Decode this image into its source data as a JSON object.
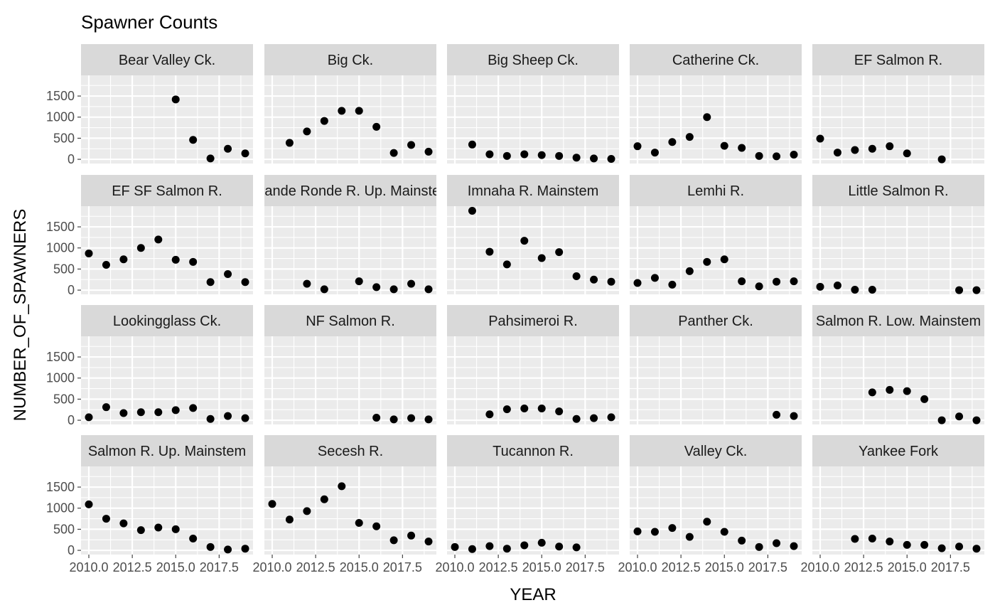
{
  "chart_data": {
    "type": "scatter",
    "title": "Spawner Counts",
    "xlabel": "YEAR",
    "ylabel": "NUMBER_OF_SPAWNERS",
    "xlim": [
      2009.55,
      2019.45
    ],
    "ylim": [
      -100,
      1990
    ],
    "x_ticks": [
      2010.0,
      2012.5,
      2015.0,
      2017.5
    ],
    "x_tick_labels": [
      "2010.0",
      "2012.5",
      "2015.0",
      "2017.5"
    ],
    "y_ticks": [
      0,
      500,
      1000,
      1500
    ],
    "y_tick_labels": [
      "0",
      "500",
      "1000",
      "1500"
    ],
    "grid": true,
    "facet_cols": 5,
    "panels": [
      {
        "name": "Bear Valley Ck.",
        "points": [
          [
            2015,
            1420
          ],
          [
            2016,
            460
          ],
          [
            2017,
            20
          ],
          [
            2018,
            250
          ],
          [
            2019,
            140
          ]
        ]
      },
      {
        "name": "Big Ck.",
        "points": [
          [
            2011,
            390
          ],
          [
            2012,
            660
          ],
          [
            2013,
            910
          ],
          [
            2014,
            1150
          ],
          [
            2015,
            1150
          ],
          [
            2016,
            770
          ],
          [
            2017,
            150
          ],
          [
            2018,
            340
          ],
          [
            2019,
            180
          ]
        ]
      },
      {
        "name": "Big Sheep Ck.",
        "points": [
          [
            2011,
            350
          ],
          [
            2012,
            120
          ],
          [
            2013,
            80
          ],
          [
            2014,
            120
          ],
          [
            2015,
            100
          ],
          [
            2016,
            80
          ],
          [
            2017,
            40
          ],
          [
            2018,
            20
          ],
          [
            2019,
            10
          ]
        ]
      },
      {
        "name": "Catherine Ck.",
        "points": [
          [
            2010,
            310
          ],
          [
            2011,
            160
          ],
          [
            2012,
            410
          ],
          [
            2013,
            530
          ],
          [
            2014,
            1000
          ],
          [
            2015,
            320
          ],
          [
            2016,
            270
          ],
          [
            2017,
            80
          ],
          [
            2018,
            70
          ],
          [
            2019,
            110
          ]
        ]
      },
      {
        "name": "EF Salmon R.",
        "points": [
          [
            2010,
            490
          ],
          [
            2011,
            160
          ],
          [
            2012,
            220
          ],
          [
            2013,
            250
          ],
          [
            2014,
            310
          ],
          [
            2015,
            140
          ],
          [
            2017,
            0
          ]
        ]
      },
      {
        "name": "EF SF Salmon R.",
        "points": [
          [
            2010,
            870
          ],
          [
            2011,
            600
          ],
          [
            2012,
            730
          ],
          [
            2013,
            1000
          ],
          [
            2014,
            1200
          ],
          [
            2015,
            720
          ],
          [
            2016,
            670
          ],
          [
            2017,
            190
          ],
          [
            2018,
            380
          ],
          [
            2019,
            190
          ]
        ]
      },
      {
        "name": "Grande Ronde R. Up. Mainstem",
        "points": [
          [
            2012,
            150
          ],
          [
            2013,
            20
          ],
          [
            2015,
            210
          ],
          [
            2016,
            70
          ],
          [
            2017,
            20
          ],
          [
            2018,
            150
          ],
          [
            2019,
            20
          ]
        ]
      },
      {
        "name": "Imnaha R. Mainstem",
        "points": [
          [
            2011,
            1880
          ],
          [
            2012,
            910
          ],
          [
            2013,
            610
          ],
          [
            2014,
            1170
          ],
          [
            2015,
            760
          ],
          [
            2016,
            900
          ],
          [
            2017,
            330
          ],
          [
            2018,
            250
          ],
          [
            2019,
            200
          ]
        ]
      },
      {
        "name": "Lemhi R.",
        "points": [
          [
            2010,
            170
          ],
          [
            2011,
            290
          ],
          [
            2012,
            130
          ],
          [
            2013,
            450
          ],
          [
            2014,
            670
          ],
          [
            2015,
            730
          ],
          [
            2016,
            210
          ],
          [
            2017,
            90
          ],
          [
            2018,
            200
          ],
          [
            2019,
            210
          ]
        ]
      },
      {
        "name": "Little Salmon R.",
        "points": [
          [
            2010,
            80
          ],
          [
            2011,
            110
          ],
          [
            2012,
            10
          ],
          [
            2013,
            10
          ],
          [
            2018,
            0
          ],
          [
            2019,
            0
          ]
        ]
      },
      {
        "name": "Lookingglass Ck.",
        "points": [
          [
            2010,
            70
          ],
          [
            2011,
            310
          ],
          [
            2012,
            170
          ],
          [
            2013,
            190
          ],
          [
            2014,
            190
          ],
          [
            2015,
            240
          ],
          [
            2016,
            290
          ],
          [
            2017,
            30
          ],
          [
            2018,
            100
          ],
          [
            2019,
            50
          ]
        ]
      },
      {
        "name": "NF Salmon R.",
        "points": [
          [
            2016,
            60
          ],
          [
            2017,
            20
          ],
          [
            2018,
            50
          ],
          [
            2019,
            20
          ]
        ]
      },
      {
        "name": "Pahsimeroi R.",
        "points": [
          [
            2012,
            140
          ],
          [
            2013,
            260
          ],
          [
            2014,
            280
          ],
          [
            2015,
            280
          ],
          [
            2016,
            210
          ],
          [
            2017,
            30
          ],
          [
            2018,
            50
          ],
          [
            2019,
            70
          ]
        ]
      },
      {
        "name": "Panther Ck.",
        "points": [
          [
            2018,
            130
          ],
          [
            2019,
            100
          ]
        ]
      },
      {
        "name": "Salmon R. Low. Mainstem",
        "points": [
          [
            2013,
            660
          ],
          [
            2014,
            720
          ],
          [
            2015,
            690
          ],
          [
            2016,
            500
          ],
          [
            2017,
            0
          ],
          [
            2018,
            90
          ],
          [
            2019,
            0
          ]
        ]
      },
      {
        "name": "Salmon R. Up. Mainstem",
        "points": [
          [
            2010,
            1090
          ],
          [
            2011,
            750
          ],
          [
            2012,
            640
          ],
          [
            2013,
            480
          ],
          [
            2014,
            540
          ],
          [
            2015,
            500
          ],
          [
            2016,
            280
          ],
          [
            2017,
            80
          ],
          [
            2018,
            20
          ],
          [
            2019,
            40
          ]
        ]
      },
      {
        "name": "Secesh R.",
        "points": [
          [
            2010,
            1100
          ],
          [
            2011,
            730
          ],
          [
            2012,
            930
          ],
          [
            2013,
            1210
          ],
          [
            2014,
            1520
          ],
          [
            2015,
            650
          ],
          [
            2016,
            570
          ],
          [
            2017,
            240
          ],
          [
            2018,
            350
          ],
          [
            2019,
            210
          ]
        ]
      },
      {
        "name": "Tucannon R.",
        "points": [
          [
            2010,
            80
          ],
          [
            2011,
            30
          ],
          [
            2012,
            100
          ],
          [
            2013,
            40
          ],
          [
            2014,
            120
          ],
          [
            2015,
            180
          ],
          [
            2016,
            90
          ],
          [
            2017,
            70
          ]
        ]
      },
      {
        "name": "Valley Ck.",
        "points": [
          [
            2010,
            450
          ],
          [
            2011,
            440
          ],
          [
            2012,
            530
          ],
          [
            2013,
            320
          ],
          [
            2014,
            680
          ],
          [
            2015,
            440
          ],
          [
            2016,
            230
          ],
          [
            2017,
            80
          ],
          [
            2018,
            170
          ],
          [
            2019,
            100
          ]
        ]
      },
      {
        "name": "Yankee Fork",
        "points": [
          [
            2012,
            270
          ],
          [
            2013,
            280
          ],
          [
            2014,
            210
          ],
          [
            2015,
            130
          ],
          [
            2016,
            130
          ],
          [
            2017,
            50
          ],
          [
            2018,
            90
          ],
          [
            2019,
            40
          ]
        ]
      }
    ]
  }
}
